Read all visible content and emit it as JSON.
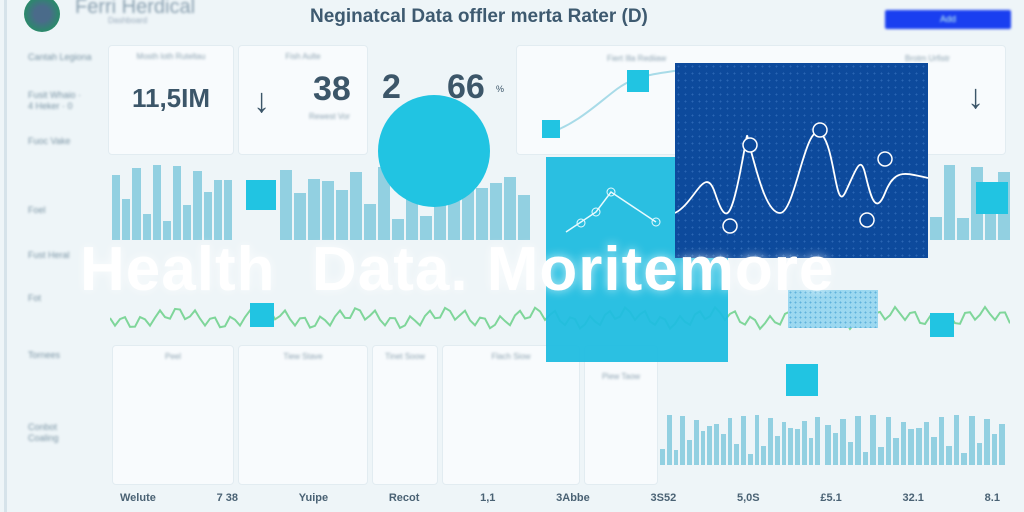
{
  "header": {
    "brand": "Ferri Herdical",
    "brand_sub": "Dashboard",
    "title": "Neginatcal Data offler merta Rater (D)",
    "button_label": "Add"
  },
  "sidebar": {
    "items": [
      "Cantah Legiona",
      "Fusit Whaio · 4 Heker · 0",
      "Fuoc Vake",
      "Foel",
      "Fust Heral",
      "Fot",
      "Tornees",
      "Conbot Coaling"
    ]
  },
  "cards": [
    {
      "label": "Mosth loth Ruteltau",
      "value": "11,5IM"
    },
    {
      "label": "Fish Aulte",
      "value": "38",
      "note": "Rewest Vor"
    },
    {
      "label": "",
      "value": "2"
    },
    {
      "label": "",
      "value": "66",
      "unit": "%"
    },
    {
      "label": "Fiert Illa Rediiaw",
      "value": ""
    },
    {
      "label": "Brotm Urfistr",
      "value": ""
    }
  ],
  "mini_labels": [
    "Peel",
    "Tiew Stave",
    "Tinet Soow",
    "Flach Siow",
    "Piew Taow"
  ],
  "headline": "Health  Data. Moritemore",
  "footer": [
    "Welute",
    "7 38",
    "Yuipe",
    "Recot",
    "1,1",
    "3Abbe",
    "3S52",
    "5,0S",
    "£5.1",
    "32.1",
    "8.1"
  ],
  "colors": {
    "accent": "#21c4e2",
    "dark_panel": "#0d4a9c",
    "button": "#1a3ff0"
  }
}
